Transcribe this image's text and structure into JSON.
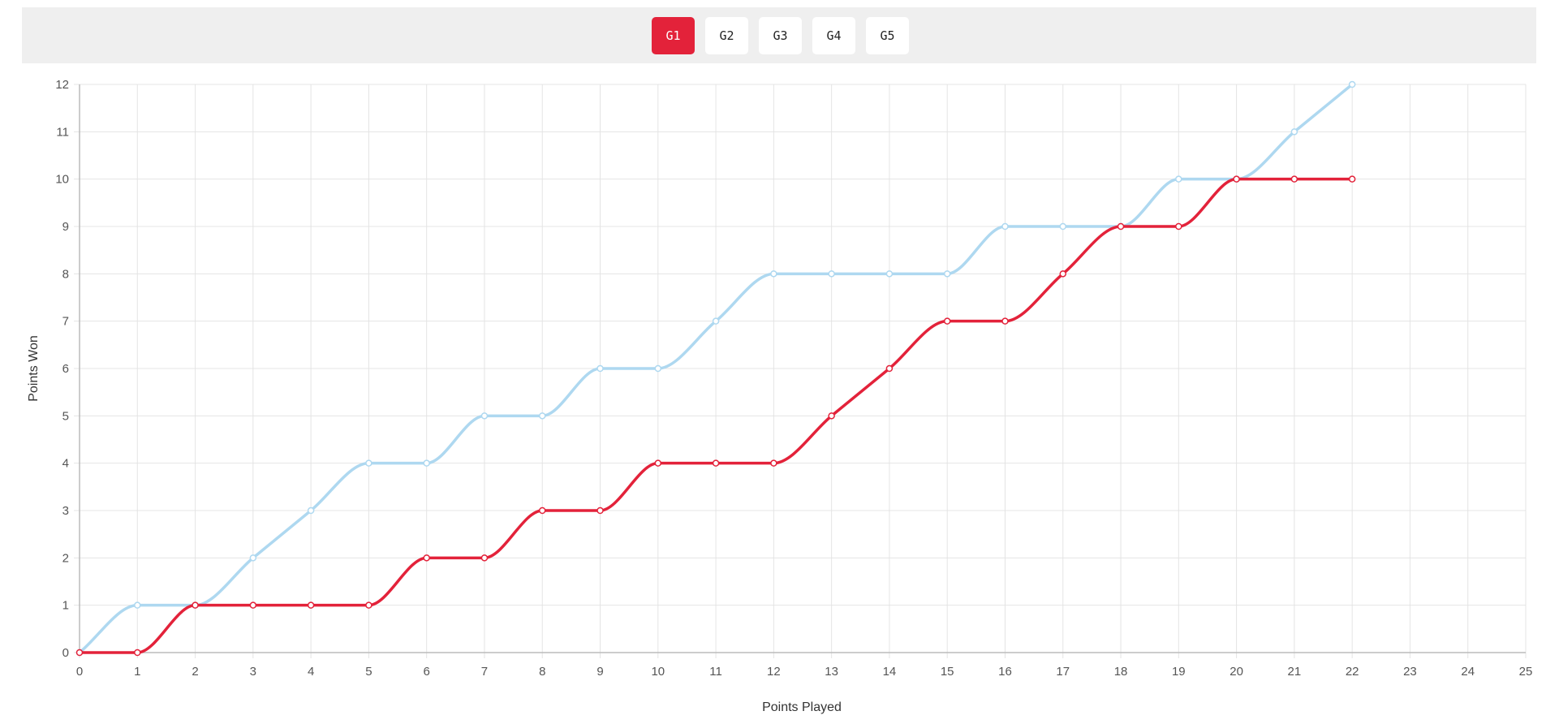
{
  "tabs": [
    {
      "label": "G1",
      "active": true
    },
    {
      "label": "G2",
      "active": false
    },
    {
      "label": "G3",
      "active": false
    },
    {
      "label": "G4",
      "active": false
    },
    {
      "label": "G5",
      "active": false
    }
  ],
  "colors": {
    "active_tab": "#e3223a",
    "series_a": "#aed8f0",
    "series_b": "#e3223a",
    "grid": "#e4e4e4",
    "axis": "#bbbbbb"
  },
  "chart_data": {
    "type": "line",
    "xlabel": "Points Played",
    "ylabel": "Points Won",
    "xlim": [
      0,
      25
    ],
    "ylim": [
      0,
      12
    ],
    "grid": true,
    "x": [
      0,
      1,
      2,
      3,
      4,
      5,
      6,
      7,
      8,
      9,
      10,
      11,
      12,
      13,
      14,
      15,
      16,
      17,
      18,
      19,
      20,
      21,
      22
    ],
    "series": [
      {
        "color": "#aed8f0",
        "values": [
          0,
          1,
          1,
          2,
          3,
          4,
          4,
          5,
          5,
          6,
          6,
          7,
          8,
          8,
          8,
          8,
          9,
          9,
          9,
          10,
          10,
          11,
          12
        ]
      },
      {
        "color": "#e3223a",
        "values": [
          0,
          0,
          1,
          1,
          1,
          1,
          2,
          2,
          3,
          3,
          4,
          4,
          4,
          5,
          6,
          7,
          7,
          8,
          9,
          9,
          10,
          10,
          10
        ]
      }
    ]
  }
}
